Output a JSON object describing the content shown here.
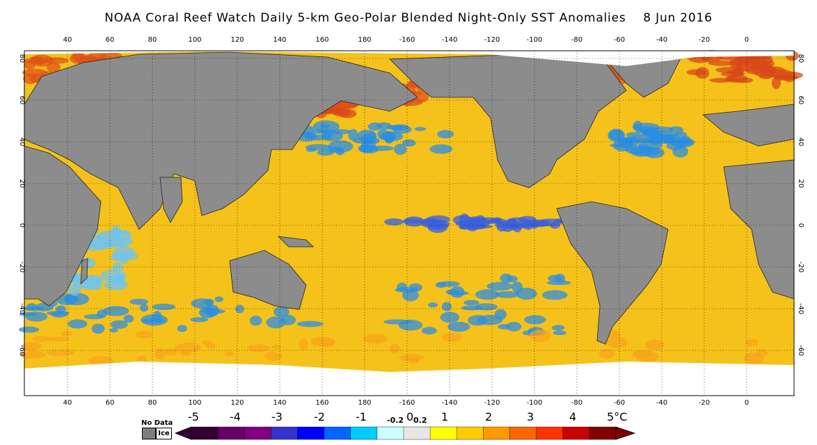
{
  "title": "NOAA Coral Reef Watch Daily 5-km Geo-Polar Blended Night-Only SST Anomalies    8 Jun 2016",
  "map": {
    "longitude_labels": [
      "40",
      "60",
      "80",
      "100",
      "120",
      "140",
      "160",
      "180",
      "-160",
      "-140",
      "-120",
      "-100",
      "-80",
      "-60",
      "-40",
      "-20",
      "0"
    ],
    "latitude_labels": [
      "80",
      "60",
      "40",
      "20",
      "0",
      "-20",
      "-40",
      "-60"
    ],
    "colors": {
      "land": "#8c8c8c",
      "ice": "#ffffff",
      "warm_anomaly": "#f5c21b",
      "cool_anomaly": "#2a8ee6"
    }
  },
  "legend": {
    "no_data_label": "No Data",
    "ice_label": "Ice",
    "unit": "°C",
    "labels": [
      "-5",
      "-4",
      "-3",
      "-2",
      "-1",
      "-0.2",
      "0",
      "0.2",
      "1",
      "2",
      "3",
      "4",
      "5°C"
    ],
    "colors": [
      "#330033",
      "#660066",
      "#800080",
      "#3333cc",
      "#0000ff",
      "#0066ff",
      "#00ccff",
      "#ccffff",
      "#e6e6e6",
      "#ffff00",
      "#ffcc00",
      "#ff9900",
      "#ff6600",
      "#ff3300",
      "#cc0000",
      "#800000"
    ]
  }
}
